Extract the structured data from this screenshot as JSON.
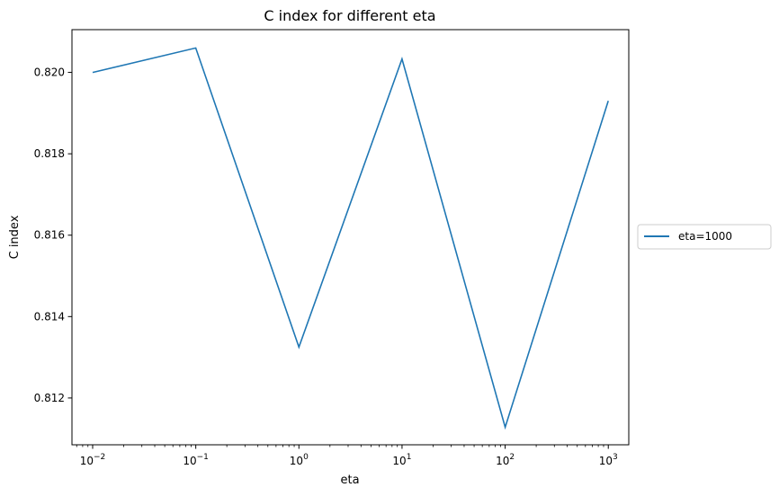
{
  "chart_data": {
    "type": "line",
    "title": "C index for different eta",
    "xlabel": "eta",
    "ylabel": "C index",
    "xscale": "log",
    "xlim": [
      0.0063,
      1580
    ],
    "ylim": [
      0.81085,
      0.82105
    ],
    "x": [
      0.01,
      0.1,
      1,
      10,
      100,
      1000
    ],
    "x_tick_labels": [
      {
        "base": "10",
        "exp": "−2",
        "value": 0.01
      },
      {
        "base": "10",
        "exp": "−1",
        "value": 0.1
      },
      {
        "base": "10",
        "exp": "0",
        "value": 1
      },
      {
        "base": "10",
        "exp": "1",
        "value": 10
      },
      {
        "base": "10",
        "exp": "2",
        "value": 100
      },
      {
        "base": "10",
        "exp": "3",
        "value": 1000
      }
    ],
    "y_ticks": [
      0.812,
      0.814,
      0.816,
      0.818,
      0.82
    ],
    "y_tick_labels": [
      "0.812",
      "0.814",
      "0.816",
      "0.818",
      "0.820"
    ],
    "series": [
      {
        "name": "eta=1000",
        "color": "#1f77b4",
        "values": [
          0.82,
          0.8206,
          0.81325,
          0.82033,
          0.81128,
          0.8193
        ]
      }
    ],
    "legend": {
      "placement": "center-right outside"
    },
    "grid": false
  }
}
